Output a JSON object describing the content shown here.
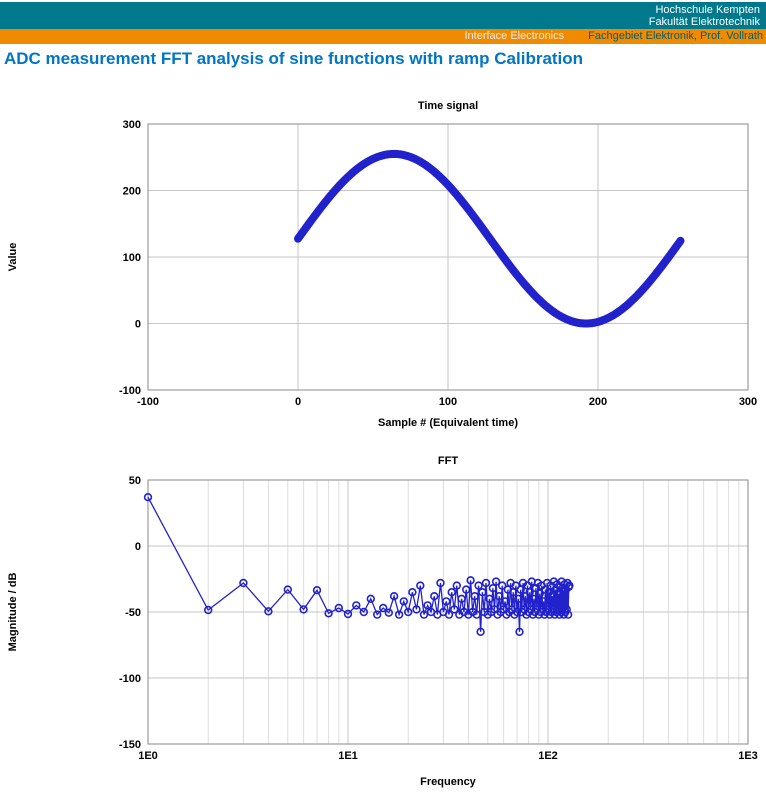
{
  "header": {
    "line1": "Hochschule Kempten",
    "line2": "Fakultät Elektrotechnik",
    "subbar_left": "Interface Electronics",
    "subbar_right": "Fachgebiet Elektronik, Prof. Vollrath"
  },
  "page_title": "ADC measurement FFT analysis of sine functions with ramp Calibration",
  "colors": {
    "teal_bar": "#00798C",
    "orange_bar": "#F08A00",
    "title_blue": "#0076C4",
    "series_blue": "#2222CC",
    "grid_gray": "#C6C6C6"
  },
  "chart_data": [
    {
      "type": "line",
      "title": "Time signal",
      "xlabel": "Sample # (Equivalent time)",
      "ylabel": "Value",
      "xlim": [
        -100,
        300
      ],
      "ylim": [
        -100,
        300
      ],
      "xticks": [
        -100,
        0,
        100,
        200,
        300
      ],
      "yticks": [
        -100,
        0,
        100,
        200,
        300
      ],
      "grid": true,
      "legend": "none",
      "series_color": "#2222CC",
      "generator": {
        "kind": "sine",
        "n": 256,
        "x_start": 0,
        "offset": 127.5,
        "amplitude": 127.5,
        "period": 256,
        "phase_deg": 0
      }
    },
    {
      "type": "scatter",
      "title": "FFT",
      "xlabel": "Frequency",
      "ylabel": "Magnitude / dB",
      "xscale": "log",
      "xlim": [
        1,
        1000
      ],
      "ylim": [
        -150,
        50
      ],
      "xticks": [
        1,
        10,
        100,
        1000
      ],
      "xtick_labels": [
        "1E0",
        "1E1",
        "1E2",
        "1E3"
      ],
      "yticks": [
        -150,
        -100,
        -50,
        0,
        50
      ],
      "grid": true,
      "legend": "none",
      "marker": "open-circle",
      "series_color": "#2222CC",
      "points": [
        [
          1,
          37
        ],
        [
          2,
          -48.5
        ],
        [
          3,
          -28
        ],
        [
          4,
          -49.5
        ],
        [
          5,
          -33
        ],
        [
          6,
          -48
        ],
        [
          7,
          -33.5
        ],
        [
          8,
          -51
        ],
        [
          9,
          -47
        ],
        [
          10,
          -51.5
        ],
        [
          11,
          -45
        ],
        [
          12,
          -50
        ],
        [
          13,
          -40
        ],
        [
          14,
          -52
        ],
        [
          15,
          -47
        ],
        [
          16,
          -50.5
        ],
        [
          17,
          -38
        ],
        [
          18,
          -52
        ],
        [
          19,
          -42
        ],
        [
          20,
          -50
        ],
        [
          21,
          -35
        ],
        [
          22,
          -48
        ],
        [
          23,
          -30
        ],
        [
          24,
          -52
        ],
        [
          25,
          -45
        ],
        [
          26,
          -50
        ],
        [
          27,
          -38
        ],
        [
          28,
          -52
        ],
        [
          29,
          -28
        ],
        [
          30,
          -50
        ],
        [
          31,
          -42
        ],
        [
          32,
          -52
        ],
        [
          33,
          -35
        ],
        [
          34,
          -48
        ],
        [
          35,
          -30
        ],
        [
          36,
          -52
        ],
        [
          37,
          -40
        ],
        [
          38,
          -50
        ],
        [
          39,
          -33
        ],
        [
          40,
          -52
        ],
        [
          41,
          -26
        ],
        [
          42,
          -50
        ],
        [
          43,
          -38
        ],
        [
          44,
          -52
        ],
        [
          45,
          -30
        ],
        [
          46,
          -65
        ],
        [
          47,
          -35
        ],
        [
          48,
          -50
        ],
        [
          49,
          -28
        ],
        [
          50,
          -52
        ],
        [
          51,
          -40
        ],
        [
          52,
          -50
        ],
        [
          53,
          -32
        ],
        [
          54,
          -48
        ],
        [
          55,
          -27
        ],
        [
          56,
          -52
        ],
        [
          57,
          -38
        ],
        [
          58,
          -50
        ],
        [
          59,
          -30
        ],
        [
          60,
          -48
        ],
        [
          61,
          -42
        ],
        [
          62,
          -52
        ],
        [
          63,
          -33
        ],
        [
          64,
          -50
        ],
        [
          65,
          -28
        ],
        [
          66,
          -48
        ],
        [
          67,
          -35
        ],
        [
          68,
          -52
        ],
        [
          69,
          -30
        ],
        [
          70,
          -50
        ],
        [
          71,
          -40
        ],
        [
          72,
          -65
        ],
        [
          73,
          -33
        ],
        [
          74,
          -50
        ],
        [
          75,
          -28
        ],
        [
          76,
          -48
        ],
        [
          77,
          -38
        ],
        [
          78,
          -52
        ],
        [
          79,
          -30
        ],
        [
          80,
          -50
        ],
        [
          81,
          -35
        ],
        [
          82,
          -48
        ],
        [
          83,
          -27
        ],
        [
          84,
          -52
        ],
        [
          85,
          -40
        ],
        [
          86,
          -50
        ],
        [
          87,
          -32
        ],
        [
          88,
          -48
        ],
        [
          89,
          -28
        ],
        [
          90,
          -52
        ],
        [
          91,
          -36
        ],
        [
          92,
          -50
        ],
        [
          93,
          -30
        ],
        [
          94,
          -48
        ],
        [
          95,
          -42
        ],
        [
          96,
          -52
        ],
        [
          97,
          -33
        ],
        [
          98,
          -50
        ],
        [
          99,
          -28
        ],
        [
          100,
          -48
        ],
        [
          101,
          -35
        ],
        [
          102,
          -52
        ],
        [
          103,
          -30
        ],
        [
          104,
          -50
        ],
        [
          105,
          -38
        ],
        [
          106,
          -48
        ],
        [
          107,
          -27
        ],
        [
          108,
          -52
        ],
        [
          109,
          -33
        ],
        [
          110,
          -50
        ],
        [
          111,
          -29
        ],
        [
          112,
          -48
        ],
        [
          113,
          -36
        ],
        [
          114,
          -52
        ],
        [
          115,
          -31
        ],
        [
          116,
          -50
        ],
        [
          117,
          -27
        ],
        [
          118,
          -48
        ],
        [
          119,
          -34
        ],
        [
          120,
          -52
        ],
        [
          121,
          -29
        ],
        [
          122,
          -50
        ],
        [
          123,
          -33
        ],
        [
          124,
          -48
        ],
        [
          125,
          -28
        ],
        [
          126,
          -52
        ],
        [
          127,
          -31
        ],
        [
          128,
          -30
        ]
      ]
    }
  ]
}
